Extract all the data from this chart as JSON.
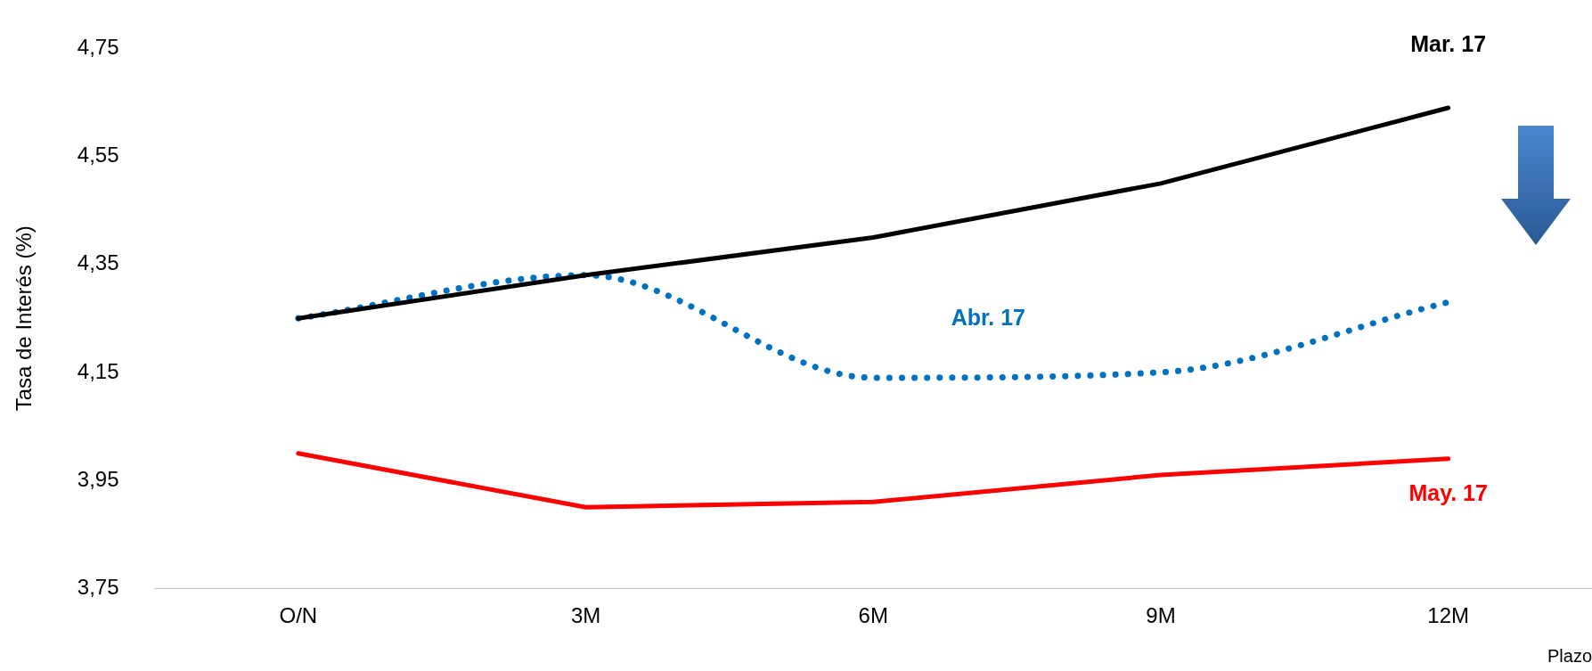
{
  "chart_data": {
    "type": "line",
    "xlabel": "Plazo",
    "ylabel": "Tasa de Interés (%)",
    "categories": [
      "O/N",
      "3M",
      "6M",
      "9M",
      "12M"
    ],
    "series": [
      {
        "name": "Mar. 17",
        "color": "#000000",
        "values": [
          4.25,
          4.33,
          4.4,
          4.5,
          4.64
        ],
        "line_style": "solid"
      },
      {
        "name": "Abr. 17",
        "color": "#0070c0",
        "values": [
          4.25,
          4.33,
          4.14,
          4.15,
          4.28
        ],
        "line_style": "dotted"
      },
      {
        "name": "May. 17",
        "color": "#ff0000",
        "values": [
          4.0,
          3.9,
          3.91,
          3.96,
          3.99
        ],
        "line_style": "solid"
      }
    ],
    "ylim": [
      3.75,
      4.75
    ],
    "yticks": [
      {
        "value": 3.75,
        "label": "3,75"
      },
      {
        "value": 3.95,
        "label": "3,95"
      },
      {
        "value": 4.15,
        "label": "4,15"
      },
      {
        "value": 4.35,
        "label": "4,35"
      },
      {
        "value": 4.55,
        "label": "4,55"
      },
      {
        "value": 4.75,
        "label": "4,75"
      }
    ],
    "grid": false,
    "legend": false,
    "marker": "none"
  }
}
